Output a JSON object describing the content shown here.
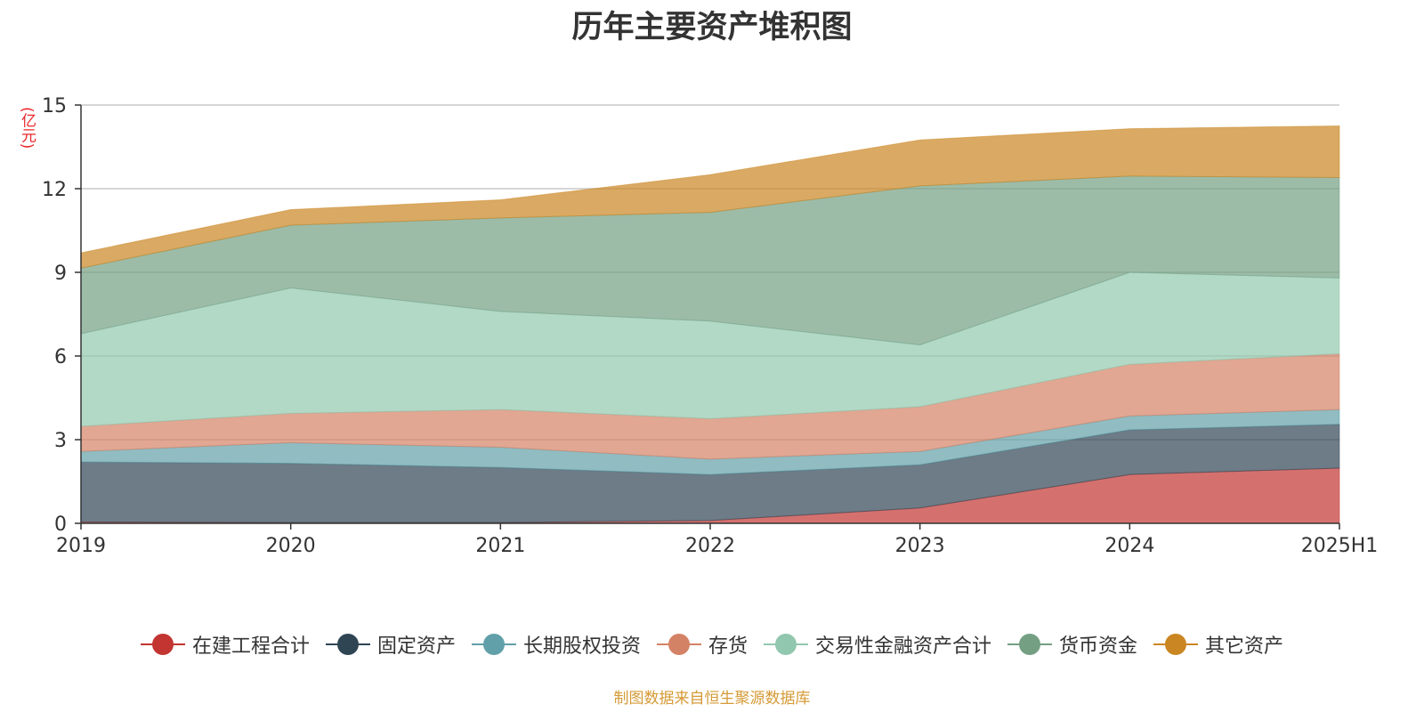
{
  "chart_data": {
    "type": "area",
    "stacked": true,
    "title": "历年主要资产堆积图",
    "unit_label": "(亿元)",
    "categories": [
      "2019",
      "2020",
      "2021",
      "2022",
      "2023",
      "2024",
      "2025H1"
    ],
    "ylim": [
      0,
      15
    ],
    "yticks": [
      "0",
      "3",
      "6",
      "9",
      "12",
      "15"
    ],
    "grid": true,
    "legend_position": "bottom",
    "series": [
      {
        "name": "在建工程合计",
        "color": "#c23531",
        "values": [
          0.05,
          0.03,
          0.03,
          0.1,
          0.55,
          1.75,
          1.98
        ]
      },
      {
        "name": "固定资产",
        "color": "#2f4554",
        "values": [
          2.15,
          2.12,
          1.97,
          1.65,
          1.55,
          1.6,
          1.57
        ]
      },
      {
        "name": "长期股权投资",
        "color": "#61a0a8",
        "values": [
          0.38,
          0.74,
          0.73,
          0.55,
          0.48,
          0.5,
          0.53
        ]
      },
      {
        "name": "存货",
        "color": "#d48265",
        "values": [
          0.9,
          1.05,
          1.35,
          1.45,
          1.6,
          1.85,
          2.0
        ]
      },
      {
        "name": "交易性金融资产合计",
        "color": "#91c7ae",
        "values": [
          3.32,
          4.5,
          3.52,
          3.5,
          2.22,
          3.3,
          2.72
        ]
      },
      {
        "name": "货币资金",
        "color": "#749f83",
        "values": [
          2.35,
          2.25,
          3.35,
          3.9,
          5.7,
          3.45,
          3.6
        ]
      },
      {
        "name": "其它资产",
        "color": "#ca8622",
        "values": [
          0.55,
          0.56,
          0.65,
          1.35,
          1.65,
          1.7,
          1.85
        ]
      }
    ]
  },
  "source_note": "制图数据来自恒生聚源数据库"
}
